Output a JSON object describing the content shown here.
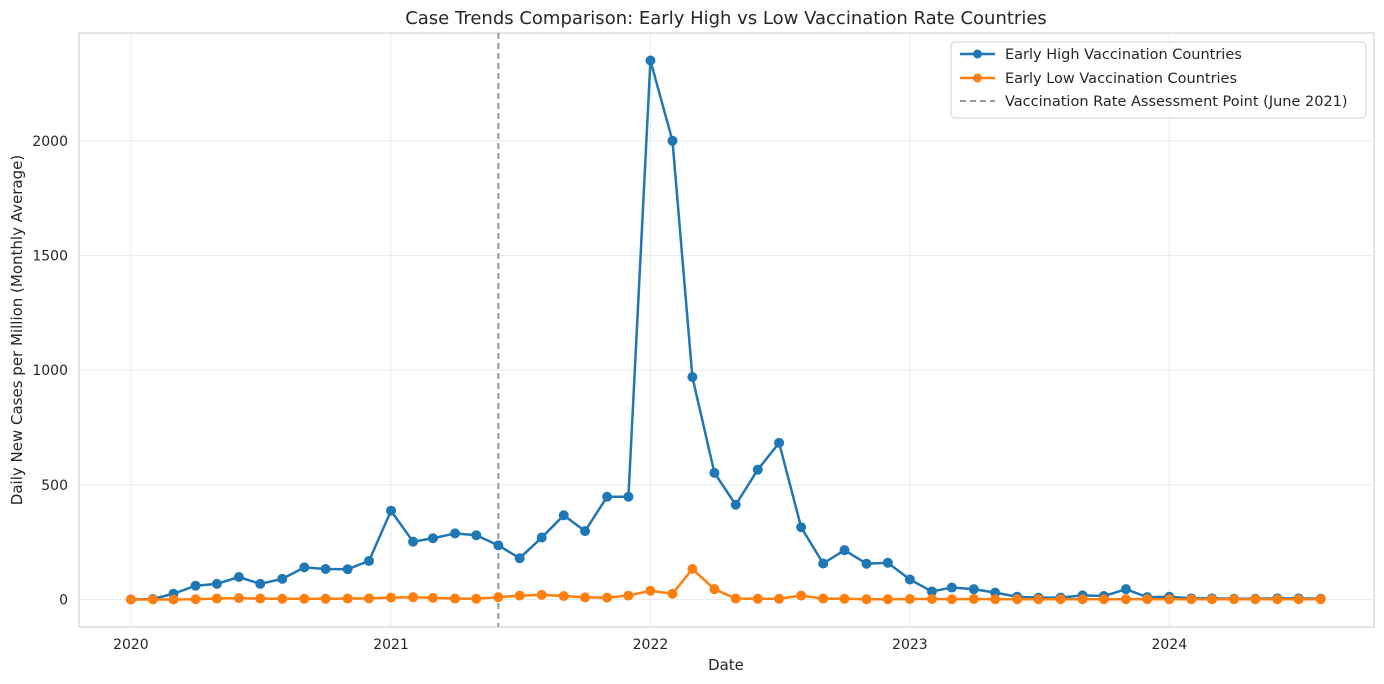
{
  "chart_data": {
    "type": "line",
    "title": "Case Trends Comparison: Early High vs Low Vaccination Rate Countries",
    "xlabel": "Date",
    "ylabel": "Daily New Cases per Million (Monthly Average)",
    "xticks": [
      "2020",
      "2021",
      "2022",
      "2023",
      "2024"
    ],
    "yticks": [
      0,
      500,
      1000,
      1500,
      2000
    ],
    "xlim": [
      "2019-10-20",
      "2024-10-15"
    ],
    "ylim": [
      -120,
      2470
    ],
    "grid": true,
    "legend_position": "top-right",
    "vline": {
      "x": "2021-06-01",
      "label": "Vaccination Rate Assessment Point (June 2021)",
      "color": "#999999"
    },
    "x": [
      "2020-01-01",
      "2020-02-01",
      "2020-03-01",
      "2020-04-01",
      "2020-05-01",
      "2020-06-01",
      "2020-07-01",
      "2020-08-01",
      "2020-09-01",
      "2020-10-01",
      "2020-11-01",
      "2020-12-01",
      "2021-01-01",
      "2021-02-01",
      "2021-03-01",
      "2021-04-01",
      "2021-05-01",
      "2021-06-01",
      "2021-07-01",
      "2021-08-01",
      "2021-09-01",
      "2021-10-01",
      "2021-11-01",
      "2021-12-01",
      "2022-01-01",
      "2022-02-01",
      "2022-03-01",
      "2022-04-01",
      "2022-05-01",
      "2022-06-01",
      "2022-07-01",
      "2022-08-01",
      "2022-09-01",
      "2022-10-01",
      "2022-11-01",
      "2022-12-01",
      "2023-01-01",
      "2023-02-01",
      "2023-03-01",
      "2023-04-01",
      "2023-05-01",
      "2023-06-01",
      "2023-07-01",
      "2023-08-01",
      "2023-09-01",
      "2023-10-01",
      "2023-11-01",
      "2023-12-01",
      "2024-01-01",
      "2024-02-01",
      "2024-03-01",
      "2024-04-01",
      "2024-05-01",
      "2024-06-01",
      "2024-07-01",
      "2024-08-01"
    ],
    "series": [
      {
        "name": "Early High Vaccination Countries",
        "color": "#1f77b4",
        "values": [
          0,
          2,
          25,
          60,
          68,
          98,
          68,
          90,
          140,
          133,
          132,
          168,
          387,
          252,
          267,
          288,
          280,
          236,
          180,
          270,
          367,
          298,
          448,
          448,
          2350,
          2000,
          970,
          552,
          413,
          566,
          683,
          315,
          157,
          215,
          156,
          160,
          87,
          35,
          52,
          45,
          30,
          12,
          8,
          8,
          18,
          15,
          45,
          10,
          12,
          5,
          5,
          3,
          3,
          5,
          5,
          3
        ]
      },
      {
        "name": "Early Low Vaccination Countries",
        "color": "#ff7f0e",
        "values": [
          0,
          0,
          0,
          1,
          4,
          6,
          4,
          3,
          3,
          3,
          4,
          5,
          8,
          10,
          7,
          4,
          3,
          10,
          17,
          20,
          15,
          9,
          8,
          17,
          38,
          25,
          133,
          45,
          4,
          3,
          3,
          17,
          4,
          3,
          1,
          1,
          2,
          2,
          1,
          2,
          1,
          1,
          1,
          1,
          1,
          1,
          1,
          1,
          1,
          1,
          1,
          1,
          1,
          1,
          1,
          1
        ]
      }
    ]
  }
}
